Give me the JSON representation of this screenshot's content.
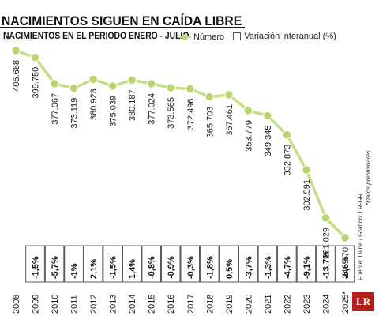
{
  "header": {
    "title": "NACIMIENTOS SIGUEN EN CAÍDA LIBRE",
    "subtitle": "NACIMIENTOS EN EL PERIODO ENERO - JULIO"
  },
  "legend": {
    "number_label": "Número",
    "variation_label": "Variación interanual (%)"
  },
  "source": "Fuente: Dane / Gráfico: LR-GR",
  "footnote": "*Datos preliminares",
  "logo": "LR",
  "colors": {
    "line": "#c7dd86",
    "marker": "#b9d56f",
    "text": "#1a1a1a"
  },
  "chart_data": {
    "type": "line",
    "categories": [
      "2008",
      "2009",
      "2010",
      "2011",
      "2012",
      "2013",
      "2014",
      "2015",
      "2016",
      "2017",
      "2018",
      "2019",
      "2020",
      "2021",
      "2022",
      "2023",
      "2024",
      "2025*"
    ],
    "series": [
      {
        "name": "Número",
        "values": [
          405688,
          399750,
          377067,
          373119,
          380923,
          375039,
          380187,
          377024,
          373565,
          372496,
          365703,
          367461,
          353779,
          349345,
          332873,
          302591,
          261029,
          243870
        ],
        "labels": [
          "405.688",
          "399.750",
          "377.067",
          "373.119",
          "380.923",
          "375.039",
          "380.187",
          "377.024",
          "373.565",
          "372.496",
          "365.703",
          "367.461",
          "353.779",
          "349.345",
          "332.873",
          "302.591",
          "261.029",
          "243.870"
        ]
      },
      {
        "name": "Variación interanual (%)",
        "labels": [
          "",
          "-1,5%",
          "-5,7%",
          "-1%",
          "2,1%",
          "-1,5%",
          "1,4%",
          "-0,8%",
          "-0,9%",
          "-0,3%",
          "-1,8%",
          "0,5%",
          "-3,7%",
          "-1,3%",
          "-4,7%",
          "-9,1%",
          "-13,7%",
          "-6,6%"
        ]
      }
    ],
    "grid": false,
    "legend_position": "top"
  }
}
